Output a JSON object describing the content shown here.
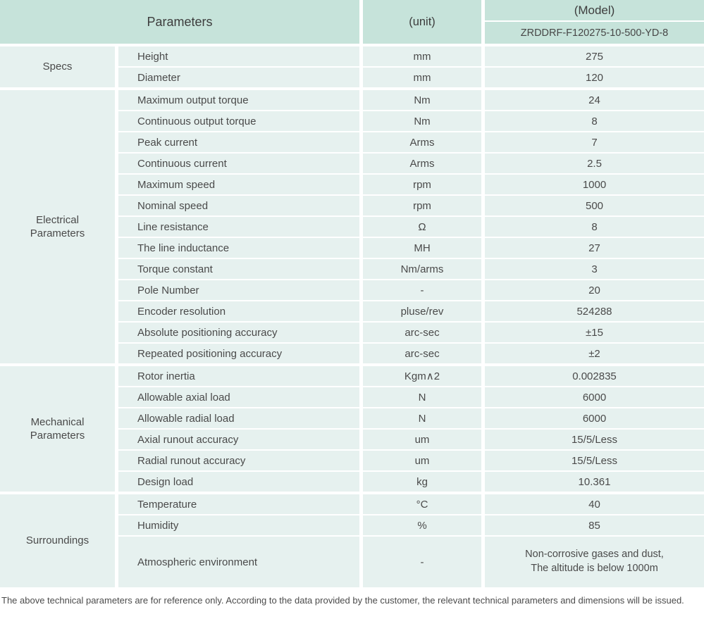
{
  "colors": {
    "header_bg": "#c6e3da",
    "cell_bg": "#e6f1ef",
    "text": "#4a4a4a",
    "page_bg": "#ffffff"
  },
  "header": {
    "parameters_label": "Parameters",
    "unit_label": "(unit)",
    "model_label": "(Model)",
    "model_value": "ZRDDRF-F120275-10-500-YD-8"
  },
  "sections": [
    {
      "label": "Specs",
      "rows": [
        {
          "parameter": "Height",
          "unit": "mm",
          "value": "275"
        },
        {
          "parameter": "Diameter",
          "unit": "mm",
          "value": "120"
        }
      ]
    },
    {
      "label": "Electrical Parameters",
      "rows": [
        {
          "parameter": "Maximum output torque",
          "unit": "Nm",
          "value": "24"
        },
        {
          "parameter": "Continuous output torque",
          "unit": "Nm",
          "value": "8"
        },
        {
          "parameter": "Peak current",
          "unit": "Arms",
          "value": "7"
        },
        {
          "parameter": "Continuous current",
          "unit": "Arms",
          "value": "2.5"
        },
        {
          "parameter": "Maximum speed",
          "unit": "rpm",
          "value": "1000"
        },
        {
          "parameter": "Nominal speed",
          "unit": "rpm",
          "value": "500"
        },
        {
          "parameter": "Line resistance",
          "unit": "Ω",
          "value": "8"
        },
        {
          "parameter": "The line inductance",
          "unit": "MH",
          "value": "27"
        },
        {
          "parameter": "Torque constant",
          "unit": "Nm/arms",
          "value": "3"
        },
        {
          "parameter": "Pole Number",
          "unit": "-",
          "value": "20"
        },
        {
          "parameter": "Encoder resolution",
          "unit": "pluse/rev",
          "value": "524288"
        },
        {
          "parameter": "Absolute positioning accuracy",
          "unit": "arc-sec",
          "value": "±15"
        },
        {
          "parameter": "Repeated positioning accuracy",
          "unit": "arc-sec",
          "value": "±2"
        }
      ]
    },
    {
      "label": "Mechanical Parameters",
      "rows": [
        {
          "parameter": "Rotor inertia",
          "unit": "Kgm∧2",
          "value": "0.002835"
        },
        {
          "parameter": "Allowable axial load",
          "unit": "N",
          "value": "6000"
        },
        {
          "parameter": "Allowable radial load",
          "unit": "N",
          "value": "6000"
        },
        {
          "parameter": "Axial runout accuracy",
          "unit": "um",
          "value": "15/5/Less"
        },
        {
          "parameter": "Radial runout accuracy",
          "unit": "um",
          "value": "15/5/Less"
        },
        {
          "parameter": "Design load",
          "unit": "kg",
          "value": "10.361"
        }
      ]
    },
    {
      "label": "Surroundings",
      "rows": [
        {
          "parameter": "Temperature",
          "unit": "°C",
          "value": "40"
        },
        {
          "parameter": "Humidity",
          "unit": "%",
          "value": "85"
        },
        {
          "parameter": "Atmospheric environment",
          "unit": "-",
          "tall": true,
          "value_lines": [
            "Non-corrosive gases and dust,",
            "The altitude is below 1000m"
          ]
        }
      ]
    }
  ],
  "footer_note": "The above technical parameters are for reference only. According to the data provided by the customer, the relevant technical parameters and dimensions will be issued."
}
